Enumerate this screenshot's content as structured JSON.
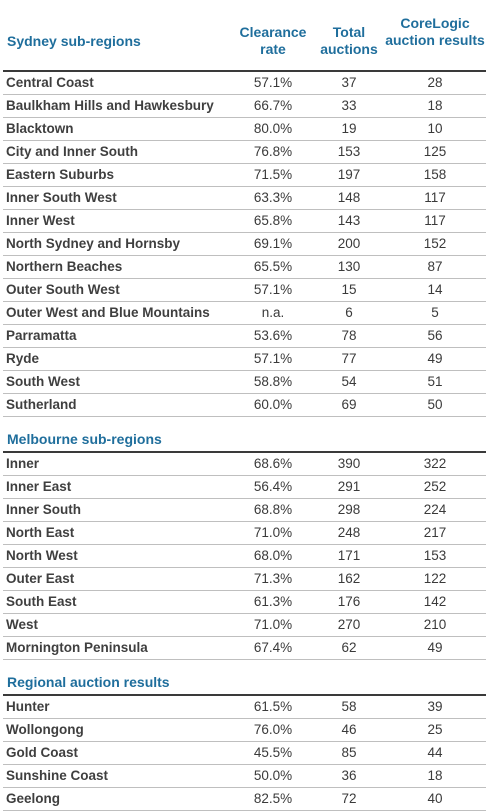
{
  "header": {
    "sydney_title": "Sydney sub-regions",
    "col1": "Clearance rate",
    "col2": "Total auctions",
    "col3": "CoreLogic auction results"
  },
  "sydney": [
    {
      "name": "Central Coast",
      "rate": "57.1%",
      "total": "37",
      "results": "28"
    },
    {
      "name": "Baulkham Hills and Hawkesbury",
      "rate": "66.7%",
      "total": "33",
      "results": "18"
    },
    {
      "name": "Blacktown",
      "rate": "80.0%",
      "total": "19",
      "results": "10"
    },
    {
      "name": "City and Inner South",
      "rate": "76.8%",
      "total": "153",
      "results": "125"
    },
    {
      "name": "Eastern Suburbs",
      "rate": "71.5%",
      "total": "197",
      "results": "158"
    },
    {
      "name": "Inner South West",
      "rate": "63.3%",
      "total": "148",
      "results": "117"
    },
    {
      "name": "Inner West",
      "rate": "65.8%",
      "total": "143",
      "results": "117"
    },
    {
      "name": "North Sydney and Hornsby",
      "rate": "69.1%",
      "total": "200",
      "results": "152"
    },
    {
      "name": "Northern Beaches",
      "rate": "65.5%",
      "total": "130",
      "results": "87"
    },
    {
      "name": "Outer South West",
      "rate": "57.1%",
      "total": "15",
      "results": "14"
    },
    {
      "name": "Outer West and Blue Mountains",
      "rate": "n.a.",
      "total": "6",
      "results": "5"
    },
    {
      "name": "Parramatta",
      "rate": "53.6%",
      "total": "78",
      "results": "56"
    },
    {
      "name": "Ryde",
      "rate": "57.1%",
      "total": "77",
      "results": "49"
    },
    {
      "name": "South West",
      "rate": "58.8%",
      "total": "54",
      "results": "51"
    },
    {
      "name": "Sutherland",
      "rate": "60.0%",
      "total": "69",
      "results": "50"
    }
  ],
  "melbourne_title": "Melbourne sub-regions",
  "melbourne": [
    {
      "name": "Inner",
      "rate": "68.6%",
      "total": "390",
      "results": "322"
    },
    {
      "name": "Inner East",
      "rate": "56.4%",
      "total": "291",
      "results": "252"
    },
    {
      "name": "Inner South",
      "rate": "68.8%",
      "total": "298",
      "results": "224"
    },
    {
      "name": "North East",
      "rate": "71.0%",
      "total": "248",
      "results": "217"
    },
    {
      "name": "North West",
      "rate": "68.0%",
      "total": "171",
      "results": "153"
    },
    {
      "name": "Outer East",
      "rate": "71.3%",
      "total": "162",
      "results": "122"
    },
    {
      "name": "South East",
      "rate": "61.3%",
      "total": "176",
      "results": "142"
    },
    {
      "name": "West",
      "rate": "71.0%",
      "total": "270",
      "results": "210"
    },
    {
      "name": "Mornington Peninsula",
      "rate": "67.4%",
      "total": "62",
      "results": "49"
    }
  ],
  "regional_title": "Regional auction results",
  "regional": [
    {
      "name": "Hunter",
      "rate": "61.5%",
      "total": "58",
      "results": "39"
    },
    {
      "name": "Wollongong",
      "rate": "76.0%",
      "total": "46",
      "results": "25"
    },
    {
      "name": "Gold Coast",
      "rate": "45.5%",
      "total": "85",
      "results": "44"
    },
    {
      "name": "Sunshine Coast",
      "rate": "50.0%",
      "total": "36",
      "results": "18"
    },
    {
      "name": "Geelong",
      "rate": "82.5%",
      "total": "72",
      "results": "40"
    }
  ],
  "colors": {
    "heading": "#1f6e9c",
    "text": "#3a3a3a",
    "rule": "#bfbfbf"
  }
}
